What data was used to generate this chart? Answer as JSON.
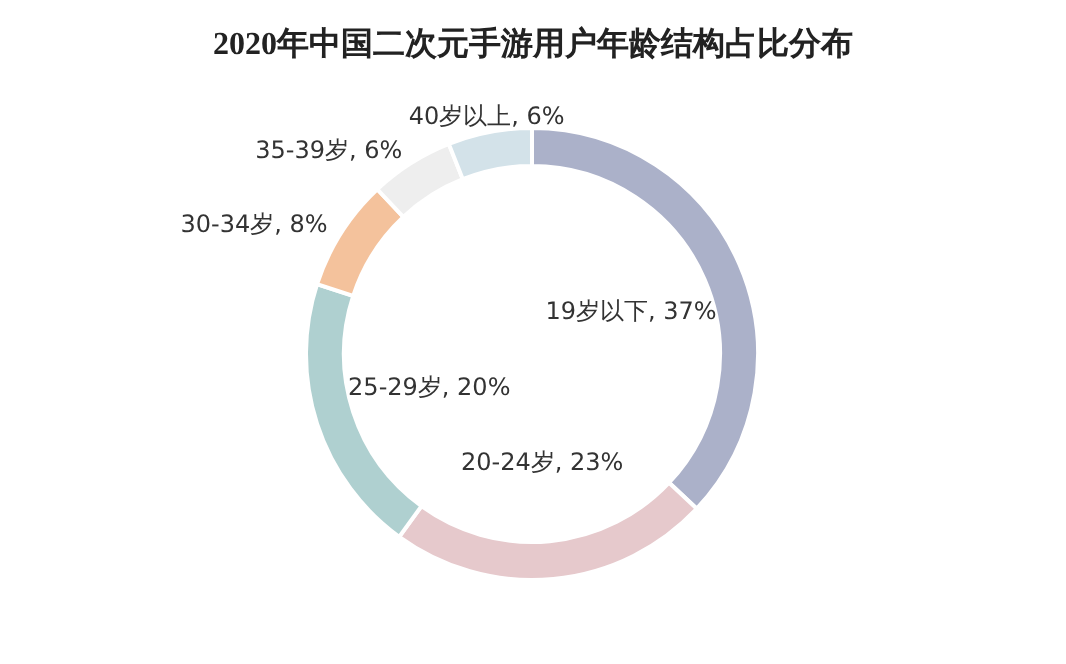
{
  "chart_data": {
    "type": "donut",
    "title": "2020年中国二次元手游用户年龄结构占比分布",
    "categories": [
      "19岁以下",
      "20-24岁",
      "25-29岁",
      "30-34岁",
      "35-39岁",
      "40岁以上"
    ],
    "values": [
      37,
      23,
      20,
      8,
      6,
      6
    ],
    "value_labels": [
      ", 37%",
      ", 23%",
      ", 20%",
      ", 8%",
      ", 6%",
      ", 6%"
    ],
    "colors": [
      "#abb1c9",
      "#e6c9cc",
      "#afd0d0",
      "#f4c29c",
      "#eeeeee",
      "#d3e2e9"
    ]
  }
}
